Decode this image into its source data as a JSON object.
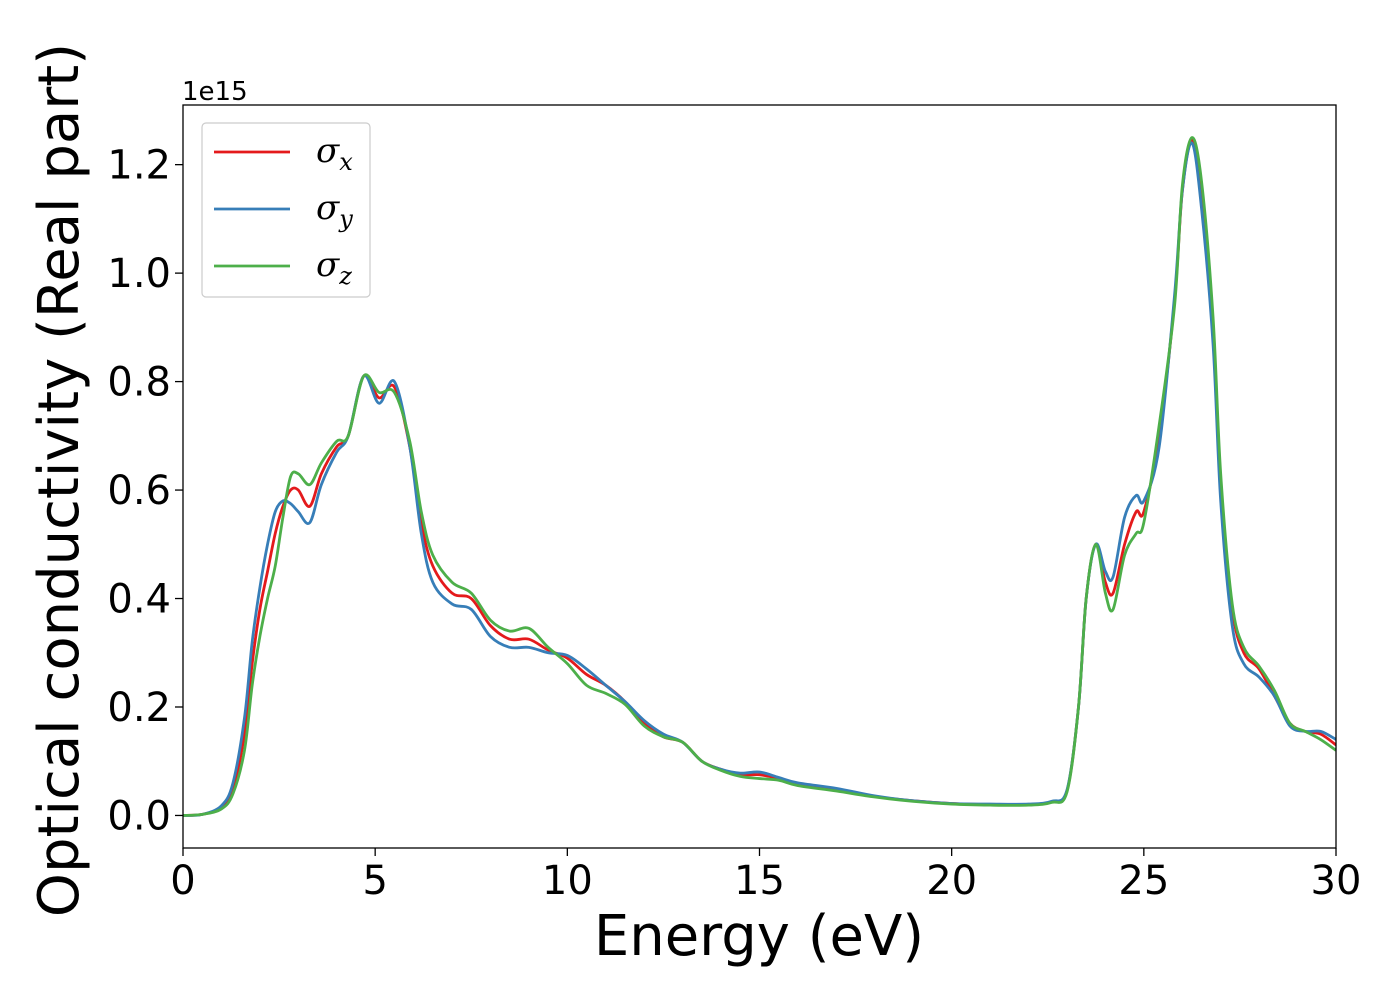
{
  "chart_data": {
    "type": "line",
    "xlabel": "Energy (eV)",
    "ylabel": "Optical conductivity (Real part)",
    "y_offset_label": "1e15",
    "xlim": [
      0,
      30
    ],
    "ylim": [
      -0.06,
      1.31
    ],
    "xticks": [
      0,
      5,
      10,
      15,
      20,
      25,
      30
    ],
    "xtick_labels": [
      "0",
      "5",
      "10",
      "15",
      "20",
      "25",
      "30"
    ],
    "yticks": [
      0.0,
      0.2,
      0.4,
      0.6,
      0.8,
      1.0,
      1.2
    ],
    "ytick_labels": [
      "0.0",
      "0.2",
      "0.4",
      "0.6",
      "0.8",
      "1.0",
      "1.2"
    ],
    "grid": false,
    "legend_position": "top-left",
    "x": [
      0.0,
      0.5,
      1.0,
      1.3,
      1.6,
      1.8,
      2.0,
      2.2,
      2.4,
      2.6,
      2.8,
      3.0,
      3.3,
      3.6,
      4.0,
      4.3,
      4.7,
      5.1,
      5.5,
      5.9,
      6.2,
      6.5,
      7.0,
      7.5,
      8.0,
      8.5,
      9.0,
      9.5,
      10.0,
      10.5,
      11.0,
      11.5,
      12.0,
      12.5,
      13.0,
      13.5,
      14.0,
      14.5,
      15.0,
      15.5,
      16.0,
      17.0,
      18.0,
      19.0,
      20.0,
      21.0,
      22.0,
      22.6,
      23.0,
      23.3,
      23.5,
      23.75,
      24.0,
      24.2,
      24.5,
      24.8,
      25.0,
      25.4,
      25.8,
      26.0,
      26.25,
      26.5,
      26.8,
      27.0,
      27.3,
      27.6,
      28.0,
      28.4,
      28.8,
      29.2,
      29.6,
      30.0
    ],
    "series": [
      {
        "name": "σx",
        "color": "#e41a1c",
        "values": [
          0.0,
          0.002,
          0.015,
          0.05,
          0.15,
          0.28,
          0.38,
          0.45,
          0.52,
          0.57,
          0.6,
          0.6,
          0.57,
          0.63,
          0.68,
          0.7,
          0.81,
          0.77,
          0.79,
          0.68,
          0.54,
          0.46,
          0.41,
          0.4,
          0.35,
          0.325,
          0.325,
          0.305,
          0.29,
          0.26,
          0.24,
          0.21,
          0.17,
          0.145,
          0.135,
          0.1,
          0.085,
          0.075,
          0.075,
          0.068,
          0.058,
          0.048,
          0.035,
          0.027,
          0.022,
          0.02,
          0.02,
          0.025,
          0.045,
          0.2,
          0.4,
          0.5,
          0.43,
          0.41,
          0.5,
          0.56,
          0.56,
          0.7,
          0.95,
          1.15,
          1.245,
          1.15,
          0.9,
          0.6,
          0.38,
          0.3,
          0.27,
          0.22,
          0.17,
          0.155,
          0.15,
          0.13
        ]
      },
      {
        "name": "σy",
        "color": "#377eb8",
        "values": [
          0.0,
          0.002,
          0.018,
          0.06,
          0.18,
          0.32,
          0.42,
          0.5,
          0.56,
          0.58,
          0.575,
          0.56,
          0.54,
          0.61,
          0.67,
          0.7,
          0.81,
          0.76,
          0.8,
          0.68,
          0.52,
          0.43,
          0.39,
          0.38,
          0.33,
          0.31,
          0.31,
          0.3,
          0.295,
          0.27,
          0.24,
          0.21,
          0.175,
          0.15,
          0.135,
          0.1,
          0.085,
          0.078,
          0.08,
          0.07,
          0.06,
          0.05,
          0.036,
          0.027,
          0.022,
          0.021,
          0.021,
          0.026,
          0.047,
          0.2,
          0.4,
          0.5,
          0.45,
          0.44,
          0.55,
          0.59,
          0.58,
          0.68,
          0.96,
          1.15,
          1.24,
          1.12,
          0.87,
          0.58,
          0.35,
          0.28,
          0.255,
          0.22,
          0.165,
          0.155,
          0.155,
          0.14
        ]
      },
      {
        "name": "σz",
        "color": "#4daf4a",
        "values": [
          0.0,
          0.002,
          0.012,
          0.04,
          0.12,
          0.24,
          0.33,
          0.4,
          0.46,
          0.55,
          0.625,
          0.63,
          0.61,
          0.65,
          0.69,
          0.7,
          0.81,
          0.78,
          0.78,
          0.69,
          0.56,
          0.48,
          0.43,
          0.41,
          0.36,
          0.34,
          0.345,
          0.31,
          0.28,
          0.24,
          0.225,
          0.205,
          0.165,
          0.145,
          0.135,
          0.1,
          0.083,
          0.072,
          0.068,
          0.065,
          0.055,
          0.045,
          0.034,
          0.026,
          0.021,
          0.019,
          0.019,
          0.024,
          0.043,
          0.2,
          0.4,
          0.5,
          0.41,
          0.38,
          0.48,
          0.52,
          0.54,
          0.72,
          0.94,
          1.16,
          1.25,
          1.17,
          0.92,
          0.63,
          0.39,
          0.31,
          0.275,
          0.23,
          0.17,
          0.155,
          0.14,
          0.12
        ]
      }
    ]
  }
}
